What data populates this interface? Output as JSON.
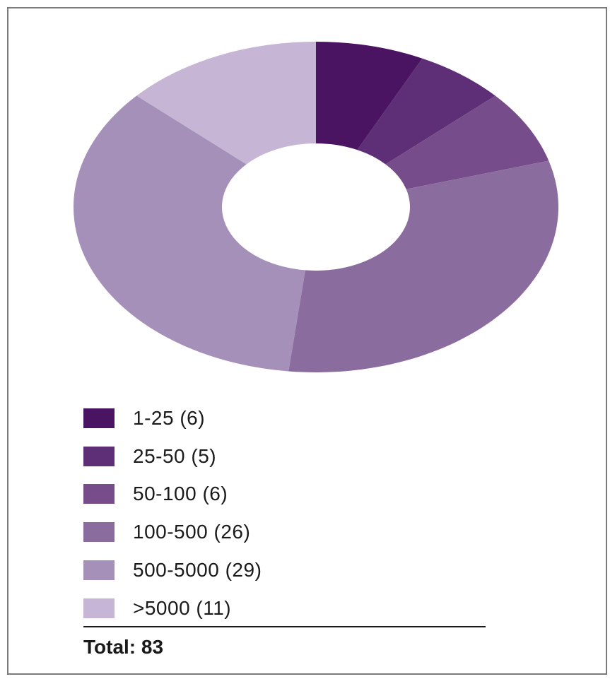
{
  "chart_data": {
    "type": "pie",
    "donut": true,
    "categories": [
      "1-25",
      "25-50",
      "50-100",
      "100-500",
      "500-5000",
      ">5000"
    ],
    "values": [
      6,
      5,
      6,
      26,
      29,
      11
    ],
    "colors": [
      "#4b1463",
      "#5e2e76",
      "#764c8a",
      "#8b6c9f",
      "#a590b9",
      "#c6b5d4"
    ],
    "legend": {
      "position": "bottom-left",
      "items": [
        {
          "label": "1-25 (6)",
          "color": "#4b1463"
        },
        {
          "label": "25-50 (5)",
          "color": "#5e2e76"
        },
        {
          "label": "50-100 (6)",
          "color": "#764c8a"
        },
        {
          "label": "100-500 (26)",
          "color": "#8b6c9f"
        },
        {
          "label": "500-5000 (29)",
          "color": "#a590b9"
        },
        {
          "label": ">5000 (11)",
          "color": "#c6b5d4"
        }
      ]
    },
    "total_label": "Total: 83"
  }
}
